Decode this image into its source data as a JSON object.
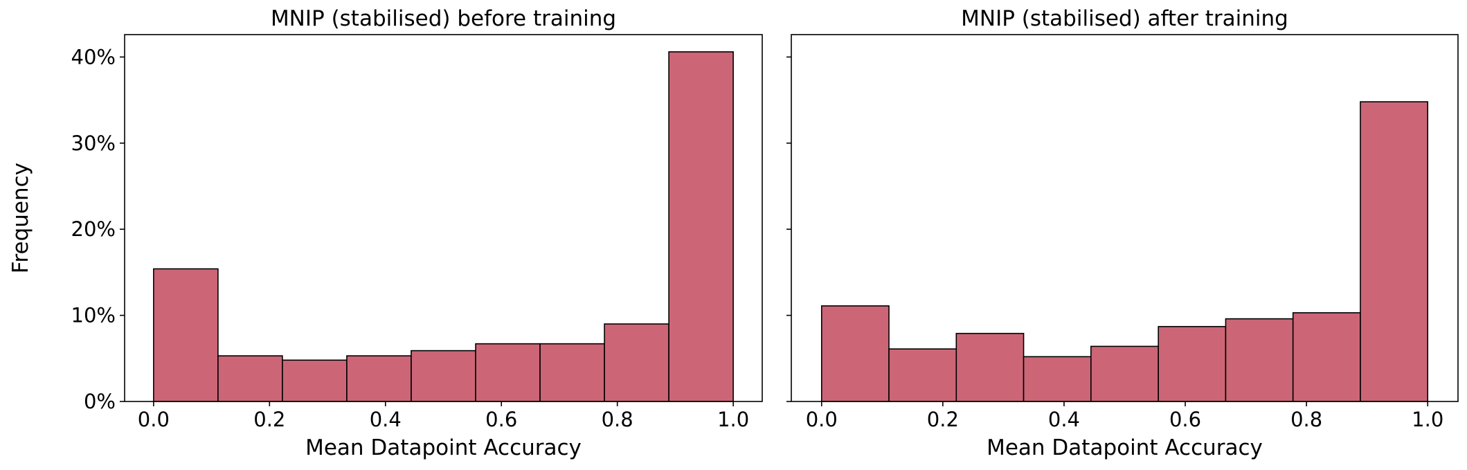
{
  "chart_data": [
    {
      "type": "bar",
      "title": "MNIP (stabilised) before training",
      "xlabel": "Mean Datapoint Accuracy",
      "ylabel": "Frequency",
      "bin_edges": [
        0.0,
        0.1111,
        0.2222,
        0.3333,
        0.4444,
        0.5556,
        0.6667,
        0.7778,
        0.8889,
        1.0
      ],
      "values": [
        15.4,
        5.3,
        4.8,
        5.3,
        5.9,
        6.7,
        6.7,
        9.0,
        40.6
      ],
      "xlim": [
        -0.05,
        1.05
      ],
      "ylim": [
        0,
        42.6
      ],
      "xticks": [
        0.0,
        0.2,
        0.4,
        0.6,
        0.8,
        1.0
      ],
      "xtick_labels": [
        "0.0",
        "0.2",
        "0.4",
        "0.6",
        "0.8",
        "1.0"
      ],
      "yticks": [
        0,
        10,
        20,
        30,
        40
      ],
      "ytick_labels": [
        "0%",
        "10%",
        "20%",
        "30%",
        "40%"
      ],
      "bar_color": "#cc6677",
      "edge_color": "#000000",
      "grid": false
    },
    {
      "type": "bar",
      "title": "MNIP (stabilised) after training",
      "xlabel": "Mean Datapoint Accuracy",
      "ylabel": "",
      "bin_edges": [
        0.0,
        0.1111,
        0.2222,
        0.3333,
        0.4444,
        0.5556,
        0.6667,
        0.7778,
        0.8889,
        1.0
      ],
      "values": [
        11.1,
        6.1,
        7.9,
        5.2,
        6.4,
        8.7,
        9.6,
        10.3,
        34.8
      ],
      "xlim": [
        -0.05,
        1.05
      ],
      "ylim": [
        0,
        42.6
      ],
      "xticks": [
        0.0,
        0.2,
        0.4,
        0.6,
        0.8,
        1.0
      ],
      "xtick_labels": [
        "0.0",
        "0.2",
        "0.4",
        "0.6",
        "0.8",
        "1.0"
      ],
      "yticks": [
        0,
        10,
        20,
        30,
        40
      ],
      "ytick_labels": [],
      "bar_color": "#cc6677",
      "edge_color": "#000000",
      "grid": false
    }
  ]
}
